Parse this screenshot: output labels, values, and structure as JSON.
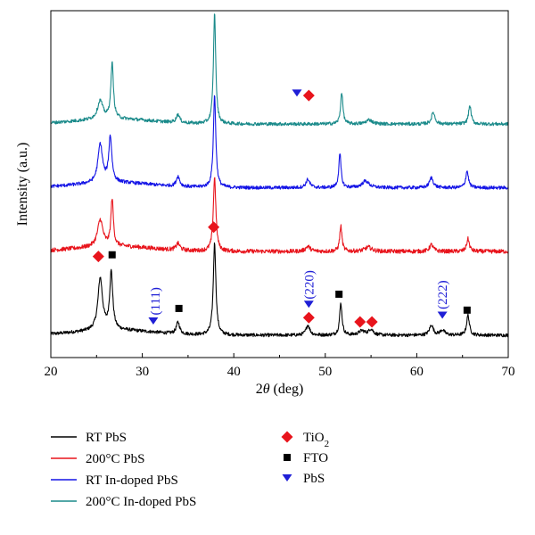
{
  "chart_data": {
    "type": "line",
    "xlabel_prefix": "2",
    "xlabel_symbol": "θ",
    "xlabel_unit": " (deg)",
    "ylabel": "Intensity (a.u.)",
    "xlim": [
      20,
      70
    ],
    "xticks": [
      "20",
      "30",
      "40",
      "50",
      "60",
      "70"
    ],
    "grid": false,
    "y_units": "arbitrary, offset",
    "series": [
      {
        "name": "RT PbS",
        "color": "#000000",
        "baseline": 0.0,
        "noise": 0.02,
        "peaks": [
          {
            "x": 25.4,
            "h": 0.62,
            "w": 0.3
          },
          {
            "x": 26.6,
            "h": 0.68,
            "w": 0.2
          },
          {
            "x": 33.9,
            "h": 0.14,
            "w": 0.22
          },
          {
            "x": 37.9,
            "h": 1.1,
            "w": 0.17
          },
          {
            "x": 48.1,
            "h": 0.12,
            "w": 0.25
          },
          {
            "x": 51.7,
            "h": 0.38,
            "w": 0.16
          },
          {
            "x": 54.0,
            "h": 0.05,
            "w": 0.4
          },
          {
            "x": 55.0,
            "h": 0.07,
            "w": 0.3
          },
          {
            "x": 61.6,
            "h": 0.12,
            "w": 0.25
          },
          {
            "x": 62.8,
            "h": 0.06,
            "w": 0.3
          },
          {
            "x": 65.6,
            "h": 0.24,
            "w": 0.18
          }
        ]
      },
      {
        "name": "200°C PbS",
        "color": "#e8141c",
        "baseline": 1.0,
        "noise": 0.025,
        "peaks": [
          {
            "x": 25.4,
            "h": 0.32,
            "w": 0.35
          },
          {
            "x": 26.7,
            "h": 0.56,
            "w": 0.16
          },
          {
            "x": 33.9,
            "h": 0.08,
            "w": 0.25
          },
          {
            "x": 37.9,
            "h": 0.88,
            "w": 0.17
          },
          {
            "x": 48.1,
            "h": 0.06,
            "w": 0.3
          },
          {
            "x": 51.7,
            "h": 0.3,
            "w": 0.15
          },
          {
            "x": 54.7,
            "h": 0.05,
            "w": 0.45
          },
          {
            "x": 61.6,
            "h": 0.08,
            "w": 0.25
          },
          {
            "x": 65.6,
            "h": 0.15,
            "w": 0.18
          }
        ]
      },
      {
        "name": "RT In-doped PbS",
        "color": "#1414e6",
        "baseline": 1.76,
        "noise": 0.02,
        "peaks": [
          {
            "x": 25.4,
            "h": 0.46,
            "w": 0.3
          },
          {
            "x": 26.5,
            "h": 0.54,
            "w": 0.2
          },
          {
            "x": 33.9,
            "h": 0.12,
            "w": 0.22
          },
          {
            "x": 37.9,
            "h": 1.1,
            "w": 0.16
          },
          {
            "x": 48.1,
            "h": 0.1,
            "w": 0.25
          },
          {
            "x": 51.6,
            "h": 0.4,
            "w": 0.15
          },
          {
            "x": 54.4,
            "h": 0.08,
            "w": 0.45
          },
          {
            "x": 61.6,
            "h": 0.12,
            "w": 0.25
          },
          {
            "x": 65.5,
            "h": 0.2,
            "w": 0.18
          }
        ]
      },
      {
        "name": "200°C In-doped PbS",
        "color": "#1a8a8a",
        "baseline": 2.52,
        "noise": 0.02,
        "peaks": [
          {
            "x": 25.4,
            "h": 0.22,
            "w": 0.35
          },
          {
            "x": 26.7,
            "h": 0.66,
            "w": 0.17
          },
          {
            "x": 33.9,
            "h": 0.1,
            "w": 0.22
          },
          {
            "x": 37.9,
            "h": 1.32,
            "w": 0.15
          },
          {
            "x": 51.8,
            "h": 0.38,
            "w": 0.15
          },
          {
            "x": 54.8,
            "h": 0.05,
            "w": 0.4
          },
          {
            "x": 61.8,
            "h": 0.14,
            "w": 0.22
          },
          {
            "x": 65.8,
            "h": 0.22,
            "w": 0.17
          }
        ]
      }
    ],
    "markers": [
      {
        "type": "TiO2",
        "x": 25.2,
        "y": 0.94
      },
      {
        "type": "FTO",
        "x": 26.7,
        "y": 0.96
      },
      {
        "type": "PbS",
        "x": 31.2,
        "y": 0.17
      },
      {
        "type": "FTO",
        "x": 34.0,
        "y": 0.32
      },
      {
        "type": "TiO2",
        "x": 37.8,
        "y": 1.29
      },
      {
        "type": "PbS",
        "x": 48.2,
        "y": 0.37
      },
      {
        "type": "TiO2",
        "x": 48.2,
        "y": 0.21
      },
      {
        "type": "FTO",
        "x": 51.5,
        "y": 0.49
      },
      {
        "type": "TiO2",
        "x": 53.8,
        "y": 0.16
      },
      {
        "type": "TiO2",
        "x": 55.1,
        "y": 0.16
      },
      {
        "type": "PbS",
        "x": 62.8,
        "y": 0.24
      },
      {
        "type": "FTO",
        "x": 65.5,
        "y": 0.3
      },
      {
        "type": "PbS",
        "x": 46.9,
        "y": 2.89
      },
      {
        "type": "TiO2",
        "x": 48.2,
        "y": 2.86
      }
    ],
    "annotations": [
      {
        "text": "(111)",
        "x": 31.4,
        "y": 0.24
      },
      {
        "text": "(220)",
        "x": 48.2,
        "y": 0.43
      },
      {
        "text": "(222)",
        "x": 62.8,
        "y": 0.31
      }
    ],
    "legend_placement": "bottom",
    "legend_series": [
      "RT PbS",
      "200°C PbS",
      "RT In-doped PbS",
      "200°C In-doped PbS"
    ],
    "legend_markers": [
      {
        "type": "TiO2",
        "label_main": "TiO",
        "label_sub": "2"
      },
      {
        "type": "FTO",
        "label_main": "FTO",
        "label_sub": ""
      },
      {
        "type": "PbS",
        "label_main": "PbS",
        "label_sub": ""
      }
    ]
  },
  "colors": {
    "TiO2": "#e8141c",
    "FTO": "#000000",
    "PbS": "#1f1fd6",
    "hkl_label": "#1f1fd6"
  }
}
